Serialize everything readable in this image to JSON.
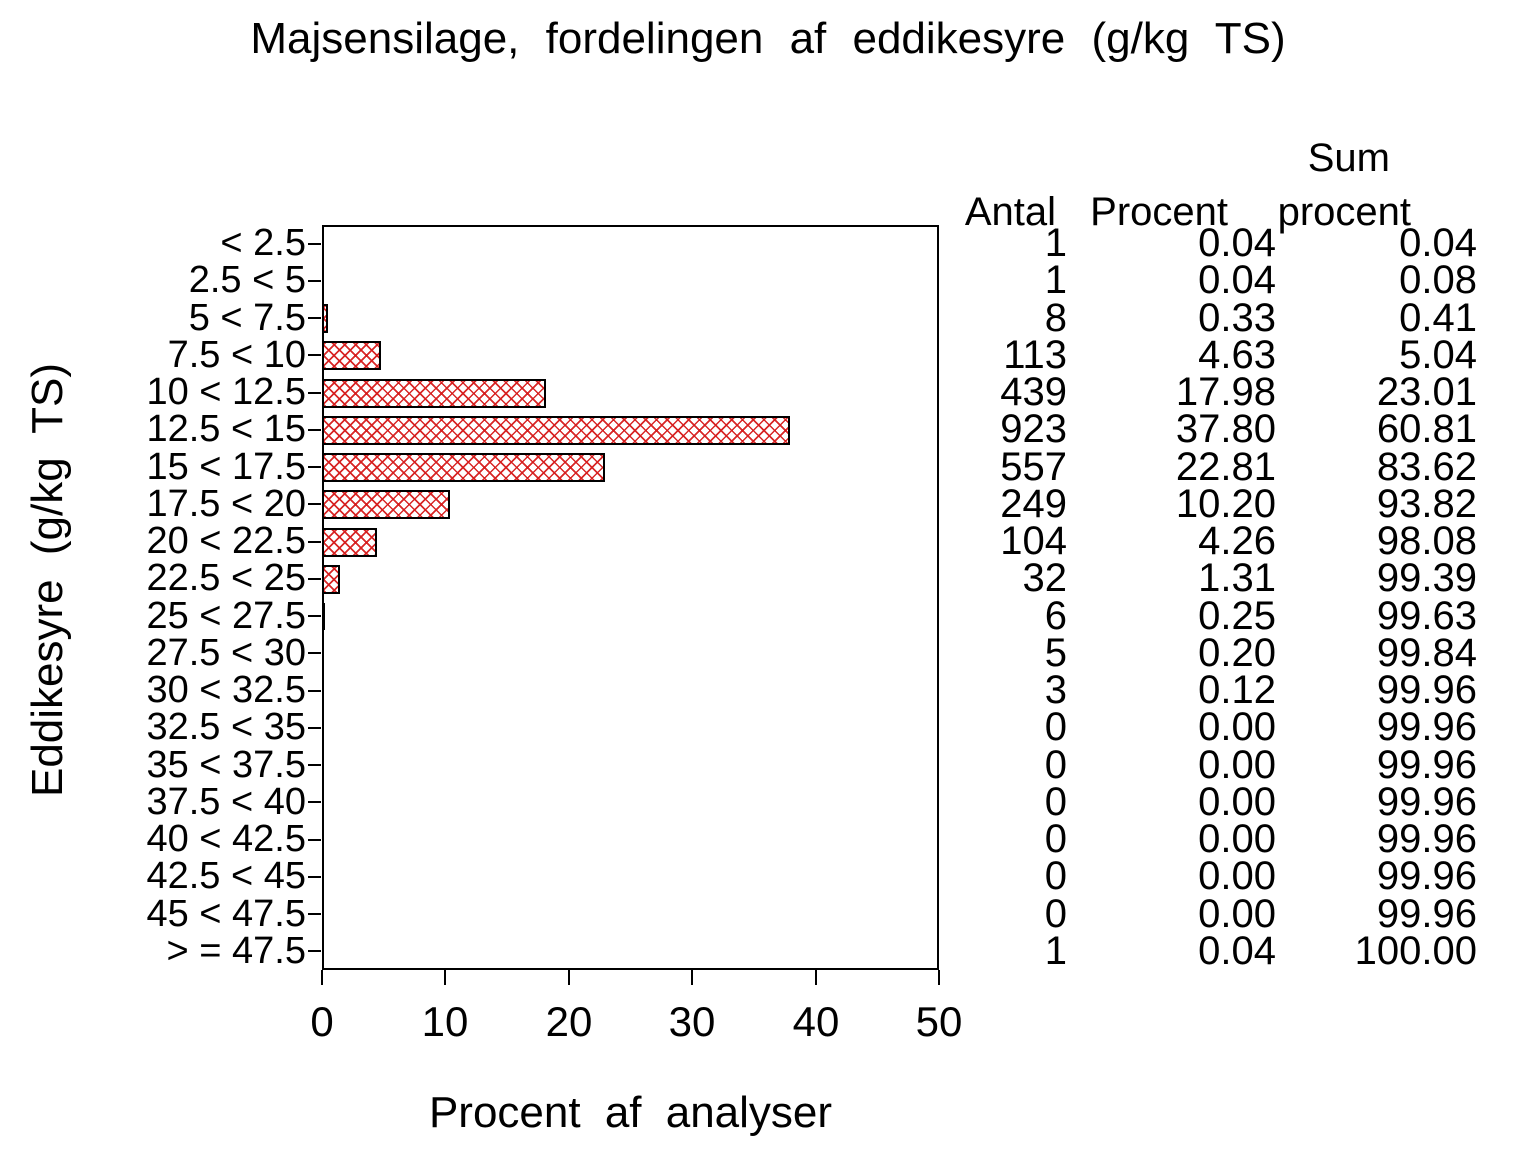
{
  "chart_data": {
    "type": "bar",
    "orientation": "horizontal",
    "title": "Majsensilage, fordelingen af eddikesyre (g/kg TS)",
    "xlabel": "Procent af analyser",
    "ylabel": "Eddikesyre (g/kg TS)",
    "xlim": [
      0,
      50
    ],
    "x_ticks": [
      0,
      10,
      20,
      30,
      40,
      50
    ],
    "grid": false,
    "legend": "none",
    "categories": [
      "< 2.5",
      "2.5 < 5",
      "5 < 7.5",
      "7.5 < 10",
      "10 < 12.5",
      "12.5 < 15",
      "15 < 17.5",
      "17.5 < 20",
      "20 < 22.5",
      "22.5 < 25",
      "25 < 27.5",
      "27.5 < 30",
      "30 < 32.5",
      "32.5 < 35",
      "35 < 37.5",
      "37.5 < 40",
      "40 < 42.5",
      "42.5 < 45",
      "45 < 47.5",
      "> = 47.5"
    ],
    "values": [
      0.04,
      0.04,
      0.33,
      4.63,
      17.98,
      37.8,
      22.81,
      10.2,
      4.26,
      1.31,
      0.25,
      0.2,
      0.12,
      0.0,
      0.0,
      0.0,
      0.0,
      0.0,
      0.0,
      0.04
    ],
    "bar_style": {
      "fill_pattern": "crosshatch",
      "pattern_color": "#d61c1c",
      "border_color": "#000000",
      "background": "#ffffff"
    }
  },
  "table": {
    "headers": {
      "antal": "Antal",
      "procent": "Procent",
      "sum_line1": "Sum",
      "sum_line2": "procent"
    },
    "rows": [
      {
        "antal": "1",
        "procent": "0.04",
        "sum": "0.04"
      },
      {
        "antal": "1",
        "procent": "0.04",
        "sum": "0.08"
      },
      {
        "antal": "8",
        "procent": "0.33",
        "sum": "0.41"
      },
      {
        "antal": "113",
        "procent": "4.63",
        "sum": "5.04"
      },
      {
        "antal": "439",
        "procent": "17.98",
        "sum": "23.01"
      },
      {
        "antal": "923",
        "procent": "37.80",
        "sum": "60.81"
      },
      {
        "antal": "557",
        "procent": "22.81",
        "sum": "83.62"
      },
      {
        "antal": "249",
        "procent": "10.20",
        "sum": "93.82"
      },
      {
        "antal": "104",
        "procent": "4.26",
        "sum": "98.08"
      },
      {
        "antal": "32",
        "procent": "1.31",
        "sum": "99.39"
      },
      {
        "antal": "6",
        "procent": "0.25",
        "sum": "99.63"
      },
      {
        "antal": "5",
        "procent": "0.20",
        "sum": "99.84"
      },
      {
        "antal": "3",
        "procent": "0.12",
        "sum": "99.96"
      },
      {
        "antal": "0",
        "procent": "0.00",
        "sum": "99.96"
      },
      {
        "antal": "0",
        "procent": "0.00",
        "sum": "99.96"
      },
      {
        "antal": "0",
        "procent": "0.00",
        "sum": "99.96"
      },
      {
        "antal": "0",
        "procent": "0.00",
        "sum": "99.96"
      },
      {
        "antal": "0",
        "procent": "0.00",
        "sum": "99.96"
      },
      {
        "antal": "0",
        "procent": "0.00",
        "sum": "99.96"
      },
      {
        "antal": "1",
        "procent": "0.04",
        "sum": "100.00"
      }
    ]
  }
}
